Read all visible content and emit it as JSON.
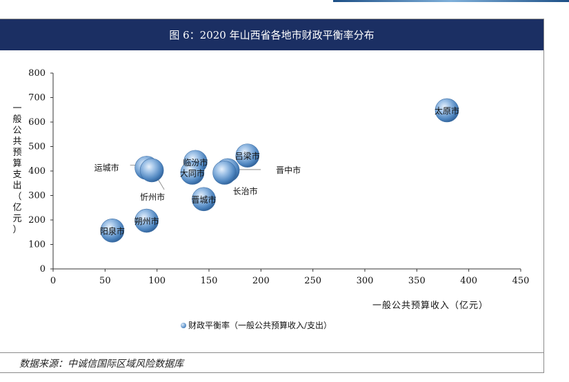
{
  "header": {
    "title": "图 6：2020 年山西省各地市财政平衡率分布"
  },
  "footer": {
    "source": "数据来源：中诚信国际区域风险数据库"
  },
  "chart_data": {
    "type": "scatter",
    "xlabel": "一般公共预算收入（亿元）",
    "ylabel": "一般公共预算支出（亿元）",
    "xlim": [
      0,
      450
    ],
    "ylim": [
      0,
      800
    ],
    "xticks": [
      "0",
      "50",
      "100",
      "150",
      "200",
      "250",
      "300",
      "350",
      "400",
      "450"
    ],
    "yticks": [
      "0",
      "100",
      "200",
      "300",
      "400",
      "500",
      "600",
      "700",
      "800"
    ],
    "grid": false,
    "legend_position": "bottom",
    "series": [
      {
        "name": "财政平衡率（一般公共预算收入/支出）",
        "color": "#5f94cb",
        "points": [
          {
            "label": "太原市",
            "x": 379,
            "y": 648
          },
          {
            "label": "吕梁市",
            "x": 187,
            "y": 463
          },
          {
            "label": "临汾市",
            "x": 137,
            "y": 437
          },
          {
            "label": "晋中市",
            "x": 168,
            "y": 403
          },
          {
            "label": "长治市",
            "x": 165,
            "y": 393
          },
          {
            "label": "大同市",
            "x": 134,
            "y": 393
          },
          {
            "label": "运城市",
            "x": 90,
            "y": 413
          },
          {
            "label": "忻州市",
            "x": 95,
            "y": 403
          },
          {
            "label": "晋城市",
            "x": 145,
            "y": 285
          },
          {
            "label": "朔州市",
            "x": 90,
            "y": 197
          },
          {
            "label": "阳泉市",
            "x": 57,
            "y": 157
          }
        ]
      }
    ]
  }
}
